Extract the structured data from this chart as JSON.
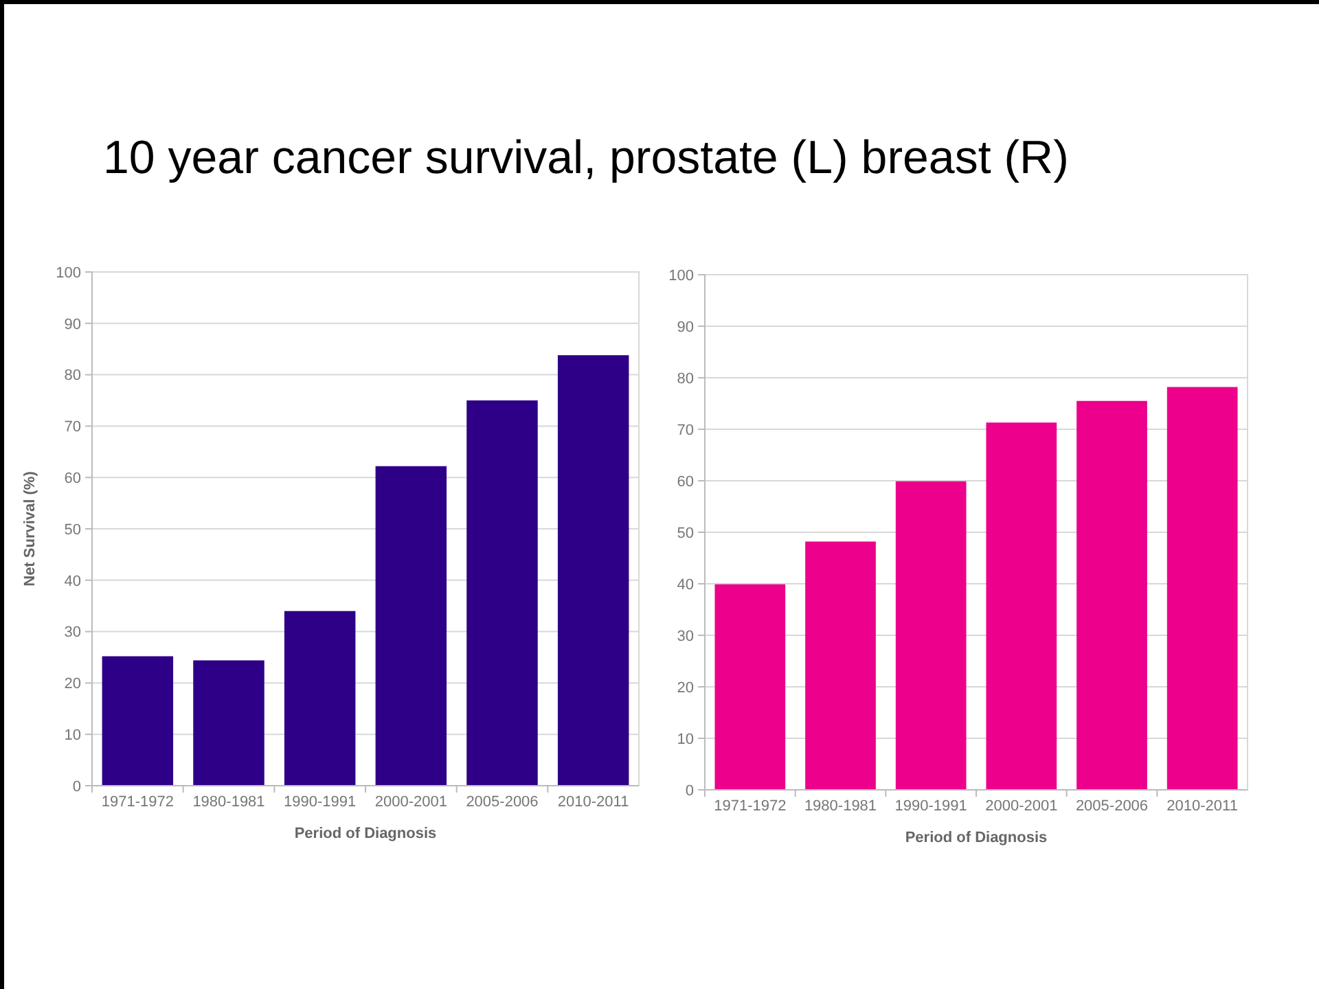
{
  "chart_data": [
    {
      "type": "bar",
      "title": "10 year cancer survival, prostate (L) breast (R)",
      "categories": [
        "1971-1972",
        "1980-1981",
        "1990-1991",
        "2000-2001",
        "2005-2006",
        "2010-2011"
      ],
      "values": [
        25.2,
        24.4,
        34,
        62.2,
        75,
        83.8
      ],
      "color": "#2e0087",
      "xlabel": "Period of Diagnosis",
      "ylabel": "Net Survival (%)",
      "ylim": [
        0,
        100
      ],
      "yticks": [
        0,
        10,
        20,
        30,
        40,
        50,
        60,
        70,
        80,
        90,
        100
      ],
      "grid": "y"
    },
    {
      "type": "bar",
      "categories": [
        "1971-1972",
        "1980-1981",
        "1990-1991",
        "2000-2001",
        "2005-2006",
        "2010-2011"
      ],
      "values": [
        39.9,
        48.2,
        59.9,
        71.3,
        75.5,
        78.2
      ],
      "color": "#ec008c",
      "xlabel": "Period of Diagnosis",
      "ylim": [
        0,
        100
      ],
      "yticks": [
        0,
        10,
        20,
        30,
        40,
        50,
        60,
        70,
        80,
        90,
        100
      ],
      "grid": "y"
    }
  ]
}
